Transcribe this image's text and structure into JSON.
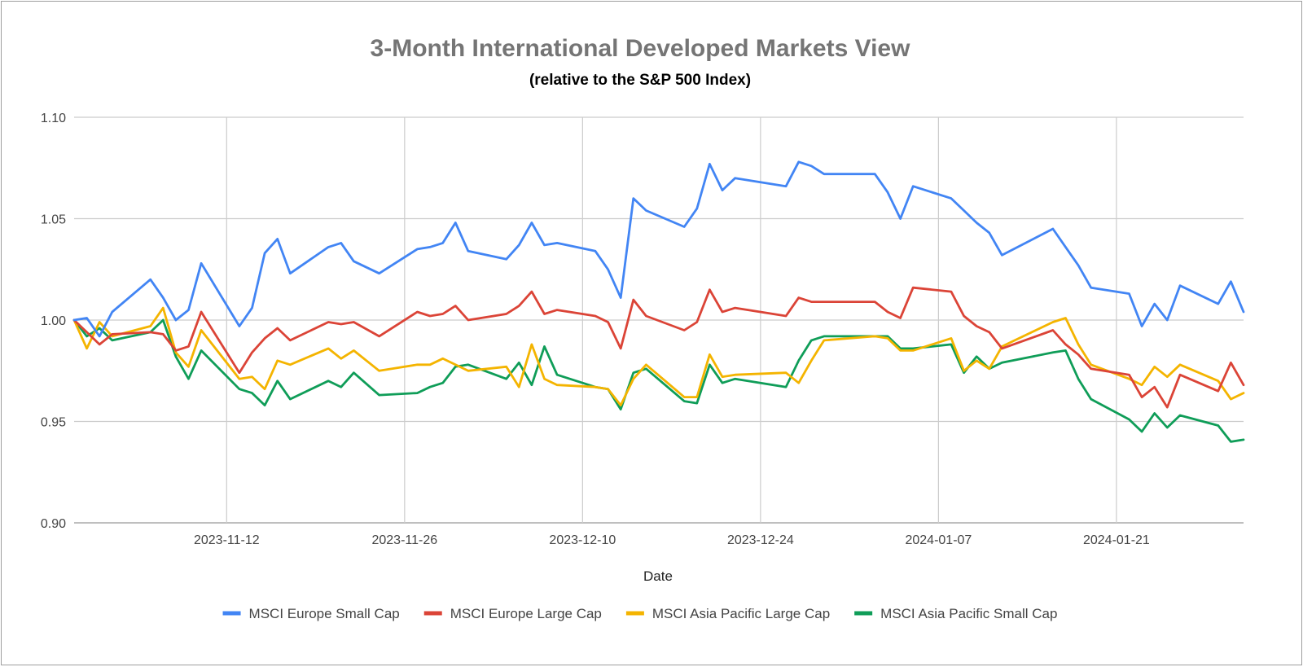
{
  "chart_data": {
    "type": "line",
    "title": "3-Month International Developed Markets View",
    "subtitle": "(relative to the S&P 500 Index)",
    "xlabel": "Date",
    "ylabel": "",
    "ylim": [
      0.9,
      1.1
    ],
    "yticks": [
      "0.90",
      "0.95",
      "1.00",
      "1.05",
      "1.10"
    ],
    "yticks_values": [
      0.9,
      0.95,
      1.0,
      1.05,
      1.1
    ],
    "xlim": [
      "2023-10-31",
      "2024-01-31"
    ],
    "xticks": [
      "2023-11-12",
      "2023-11-26",
      "2023-12-10",
      "2023-12-24",
      "2024-01-07",
      "2024-01-21"
    ],
    "grid": true,
    "legend_position": "bottom",
    "x": [
      "2023-10-31",
      "2023-11-01",
      "2023-11-02",
      "2023-11-03",
      "2023-11-06",
      "2023-11-07",
      "2023-11-08",
      "2023-11-09",
      "2023-11-10",
      "2023-11-13",
      "2023-11-14",
      "2023-11-15",
      "2023-11-16",
      "2023-11-17",
      "2023-11-20",
      "2023-11-21",
      "2023-11-22",
      "2023-11-24",
      "2023-11-27",
      "2023-11-28",
      "2023-11-29",
      "2023-11-30",
      "2023-12-01",
      "2023-12-04",
      "2023-12-05",
      "2023-12-06",
      "2023-12-07",
      "2023-12-08",
      "2023-12-11",
      "2023-12-12",
      "2023-12-13",
      "2023-12-14",
      "2023-12-15",
      "2023-12-18",
      "2023-12-19",
      "2023-12-20",
      "2023-12-21",
      "2023-12-22",
      "2023-12-26",
      "2023-12-27",
      "2023-12-28",
      "2023-12-29",
      "2024-01-02",
      "2024-01-03",
      "2024-01-04",
      "2024-01-05",
      "2024-01-08",
      "2024-01-09",
      "2024-01-10",
      "2024-01-11",
      "2024-01-12",
      "2024-01-16",
      "2024-01-17",
      "2024-01-18",
      "2024-01-19",
      "2024-01-22",
      "2024-01-23",
      "2024-01-24",
      "2024-01-25",
      "2024-01-26",
      "2024-01-29",
      "2024-01-30",
      "2024-01-31"
    ],
    "series": [
      {
        "name": "MSCI Europe Small Cap",
        "color": "#4285f4",
        "values": [
          1.0,
          1.001,
          0.992,
          1.004,
          1.02,
          1.011,
          1.0,
          1.005,
          1.028,
          0.997,
          1.006,
          1.033,
          1.04,
          1.023,
          1.036,
          1.038,
          1.029,
          1.023,
          1.035,
          1.036,
          1.038,
          1.048,
          1.034,
          1.03,
          1.037,
          1.048,
          1.037,
          1.038,
          1.034,
          1.025,
          1.011,
          1.06,
          1.054,
          1.046,
          1.055,
          1.077,
          1.064,
          1.07,
          1.066,
          1.078,
          1.076,
          1.072,
          1.072,
          1.063,
          1.05,
          1.066,
          1.06,
          1.054,
          1.048,
          1.043,
          1.032,
          1.045,
          1.036,
          1.027,
          1.016,
          1.013,
          0.997,
          1.008,
          1.0,
          1.017,
          1.008,
          1.019,
          1.004
        ]
      },
      {
        "name": "MSCI Europe Large Cap",
        "color": "#db4437",
        "values": [
          1.0,
          0.994,
          0.988,
          0.993,
          0.994,
          0.993,
          0.985,
          0.987,
          1.004,
          0.974,
          0.984,
          0.991,
          0.996,
          0.99,
          0.999,
          0.998,
          0.999,
          0.992,
          1.004,
          1.002,
          1.003,
          1.007,
          1.0,
          1.003,
          1.007,
          1.014,
          1.003,
          1.005,
          1.002,
          0.999,
          0.986,
          1.01,
          1.002,
          0.995,
          0.999,
          1.015,
          1.004,
          1.006,
          1.002,
          1.011,
          1.009,
          1.009,
          1.009,
          1.004,
          1.001,
          1.016,
          1.014,
          1.002,
          0.997,
          0.994,
          0.986,
          0.995,
          0.988,
          0.983,
          0.976,
          0.973,
          0.962,
          0.967,
          0.957,
          0.973,
          0.965,
          0.979,
          0.968
        ]
      },
      {
        "name": "MSCI Asia Pacific Large Cap",
        "color": "#f4b400",
        "values": [
          1.0,
          0.986,
          0.999,
          0.992,
          0.997,
          1.006,
          0.984,
          0.977,
          0.995,
          0.971,
          0.972,
          0.966,
          0.98,
          0.978,
          0.986,
          0.981,
          0.985,
          0.975,
          0.978,
          0.978,
          0.981,
          0.978,
          0.975,
          0.977,
          0.967,
          0.988,
          0.971,
          0.968,
          0.967,
          0.966,
          0.958,
          0.971,
          0.978,
          0.962,
          0.962,
          0.983,
          0.972,
          0.973,
          0.974,
          0.969,
          0.98,
          0.99,
          0.992,
          0.991,
          0.985,
          0.985,
          0.991,
          0.975,
          0.98,
          0.976,
          0.987,
          0.999,
          1.001,
          0.988,
          0.978,
          0.971,
          0.968,
          0.977,
          0.972,
          0.978,
          0.97,
          0.961,
          0.964
        ]
      },
      {
        "name": "MSCI Asia Pacific Small Cap",
        "color": "#0f9d58",
        "values": [
          1.0,
          0.992,
          0.996,
          0.99,
          0.994,
          1.0,
          0.982,
          0.971,
          0.985,
          0.966,
          0.964,
          0.958,
          0.97,
          0.961,
          0.97,
          0.967,
          0.974,
          0.963,
          0.964,
          0.967,
          0.969,
          0.977,
          0.978,
          0.971,
          0.979,
          0.968,
          0.987,
          0.973,
          0.967,
          0.966,
          0.956,
          0.974,
          0.976,
          0.96,
          0.959,
          0.978,
          0.969,
          0.971,
          0.967,
          0.98,
          0.99,
          0.992,
          0.992,
          0.992,
          0.986,
          0.986,
          0.988,
          0.974,
          0.982,
          0.976,
          0.979,
          0.984,
          0.985,
          0.971,
          0.961,
          0.951,
          0.945,
          0.954,
          0.947,
          0.953,
          0.948,
          0.94,
          0.941
        ]
      }
    ]
  }
}
